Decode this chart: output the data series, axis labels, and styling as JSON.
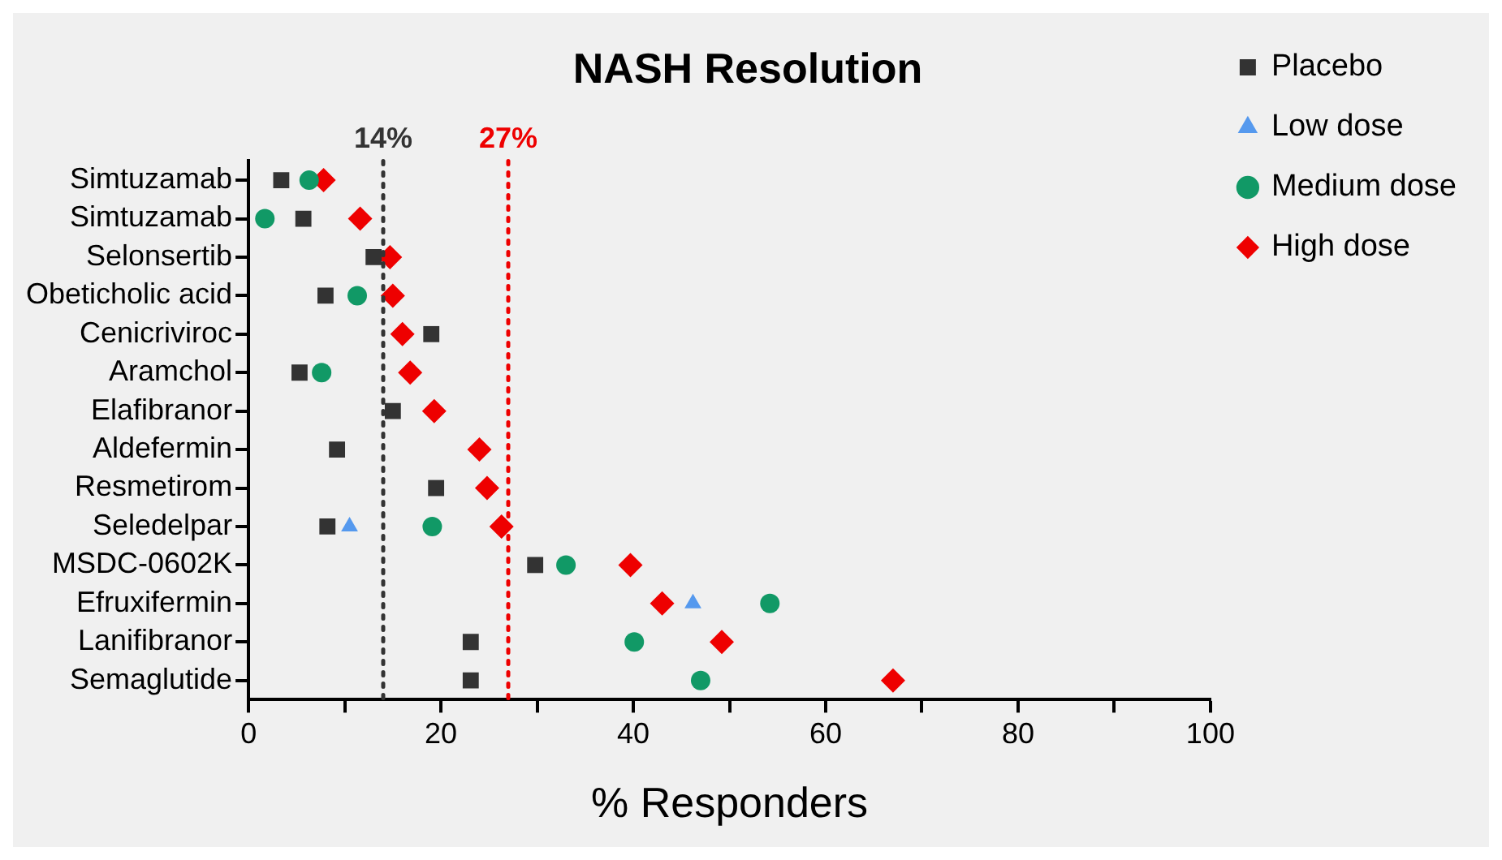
{
  "chart_data": {
    "type": "scatter",
    "title": "NASH Resolution",
    "xlabel": "% Responders",
    "categories": [
      "Simtuzamab",
      "Simtuzamab",
      "Selonsertib",
      "Obeticholic acid",
      "Cenicriviroc",
      "Aramchol",
      "Elafibranor",
      "Aldefermin",
      "Resmetirom",
      "Seledelpar",
      "MSDC-0602K",
      "Efruxifermin",
      "Lanifibranor",
      "Semaglutide"
    ],
    "series": [
      {
        "name": "Placebo",
        "color": "#333333",
        "marker": "square",
        "values": [
          3.4,
          5.7,
          13,
          8,
          19,
          5.3,
          15,
          9.2,
          19.5,
          8.2,
          29.8,
          null,
          23.1,
          23.1
        ]
      },
      {
        "name": "Low dose",
        "color": "#5599ee",
        "marker": "triangle",
        "values": [
          null,
          null,
          null,
          null,
          null,
          null,
          null,
          null,
          null,
          10.5,
          null,
          46.2,
          null,
          null
        ]
      },
      {
        "name": "Medium dose",
        "color": "#119966",
        "marker": "circle",
        "values": [
          6.3,
          1.7,
          null,
          11.3,
          null,
          7.6,
          null,
          null,
          null,
          19.1,
          33,
          54.2,
          40.1,
          47
        ]
      },
      {
        "name": "High dose",
        "color": "#ee0000",
        "marker": "diamond",
        "values": [
          7.8,
          11.6,
          14.7,
          15,
          16,
          16.8,
          19.3,
          24,
          24.8,
          26.3,
          39.7,
          43,
          49.2,
          67
        ]
      }
    ],
    "orientation": "horizontal",
    "xlim": [
      0,
      100
    ],
    "xticks": [
      0,
      {
        "value": 10,
        "label": null
      },
      20,
      {
        "value": 30,
        "label": null
      },
      40,
      {
        "value": 50,
        "label": null
      },
      60,
      {
        "value": 70,
        "label": null
      },
      80,
      {
        "value": 90,
        "label": null
      },
      100
    ],
    "ref_lines": [
      {
        "axis": "x",
        "value": 14,
        "label": "14%",
        "color": "#333333",
        "line_style": "dotted"
      },
      {
        "axis": "x",
        "value": 27,
        "label": "27%",
        "color": "#ee0000",
        "line_style": "dotted"
      }
    ],
    "grid": false,
    "legend": "right"
  }
}
